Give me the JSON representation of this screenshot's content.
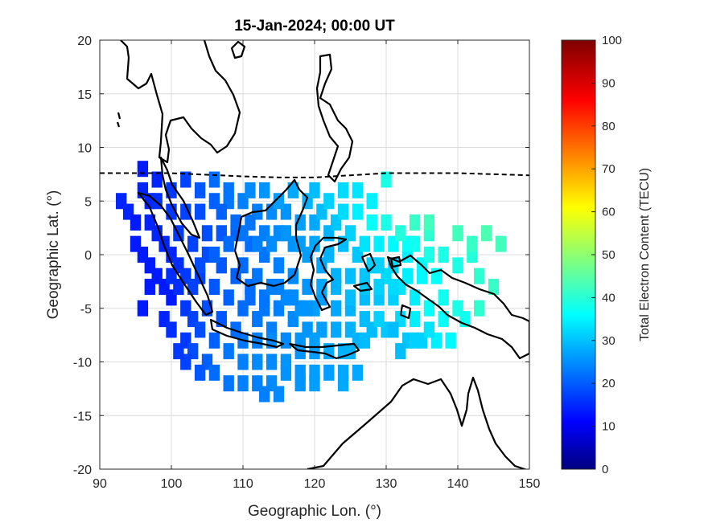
{
  "chart_data": {
    "type": "heatmap",
    "title": "15-Jan-2024; 00:00 UT",
    "xlabel": "Geographic Lon. (°)",
    "ylabel": "Geographic Lat. (°)",
    "xlim": [
      90,
      150
    ],
    "ylim": [
      -20,
      20
    ],
    "xticks": [
      90,
      100,
      110,
      120,
      130,
      140,
      150
    ],
    "yticks": [
      -20,
      -15,
      -10,
      -5,
      0,
      5,
      10,
      15,
      20
    ],
    "grid": true,
    "colorbar": {
      "label": "Total Electron Content (TECU)",
      "range": [
        0,
        100
      ],
      "ticks": [
        0,
        10,
        20,
        30,
        40,
        50,
        60,
        70,
        80,
        90,
        100
      ],
      "colormap": "jet"
    },
    "magnetic_equator": [
      [
        90,
        7.6
      ],
      [
        100,
        7.6
      ],
      [
        110,
        7.3
      ],
      [
        115,
        7.2
      ],
      [
        120,
        7.2
      ],
      [
        125,
        7.4
      ],
      [
        130,
        7.6
      ],
      [
        140,
        7.6
      ],
      [
        150,
        7.4
      ]
    ],
    "tec_cells": [
      [
        93,
        5,
        16
      ],
      [
        94,
        4,
        16
      ],
      [
        95,
        3,
        15
      ],
      [
        95,
        1,
        15
      ],
      [
        96,
        0,
        15
      ],
      [
        97,
        -1,
        15
      ],
      [
        96,
        6,
        16
      ],
      [
        96,
        8,
        15
      ],
      [
        98,
        7,
        16
      ],
      [
        97,
        5,
        16
      ],
      [
        97,
        3,
        16
      ],
      [
        98,
        2,
        16
      ],
      [
        99,
        1,
        16
      ],
      [
        100,
        0,
        16
      ],
      [
        101,
        -1,
        17
      ],
      [
        98,
        -2,
        15
      ],
      [
        99,
        -3,
        15
      ],
      [
        100,
        -4,
        15
      ],
      [
        99,
        -6,
        16
      ],
      [
        100,
        -7,
        17
      ],
      [
        102,
        -8,
        18
      ],
      [
        103,
        -9,
        20
      ],
      [
        105,
        -10,
        22
      ],
      [
        106,
        -11,
        23
      ],
      [
        108,
        -12,
        24
      ],
      [
        110,
        -12,
        25
      ],
      [
        112,
        -12,
        25
      ],
      [
        114,
        -12,
        26
      ],
      [
        116,
        -11,
        27
      ],
      [
        118,
        -11,
        27
      ],
      [
        120,
        -11,
        28
      ],
      [
        122,
        -11,
        28
      ],
      [
        124,
        -11,
        29
      ],
      [
        126,
        -11,
        29
      ],
      [
        101,
        -3,
        17
      ],
      [
        102,
        -5,
        18
      ],
      [
        103,
        -6,
        19
      ],
      [
        104,
        -7,
        20
      ],
      [
        106,
        -8,
        22
      ],
      [
        108,
        -9,
        24
      ],
      [
        110,
        -10,
        25
      ],
      [
        112,
        -10,
        26
      ],
      [
        114,
        -10,
        26
      ],
      [
        116,
        -10,
        27
      ],
      [
        118,
        -9,
        27
      ],
      [
        120,
        -9,
        28
      ],
      [
        122,
        -9,
        29
      ],
      [
        124,
        -9,
        30
      ],
      [
        126,
        -8,
        30
      ],
      [
        128,
        -7,
        31
      ],
      [
        130,
        -7,
        32
      ],
      [
        132,
        -6,
        34
      ],
      [
        134,
        -6,
        36
      ],
      [
        135,
        -8,
        33
      ],
      [
        136,
        -5,
        38
      ],
      [
        134,
        -4,
        36
      ],
      [
        132,
        -3,
        35
      ],
      [
        130,
        -2,
        34
      ],
      [
        128,
        -1,
        33
      ],
      [
        126,
        0,
        32
      ],
      [
        124,
        1,
        31
      ],
      [
        122,
        2,
        30
      ],
      [
        120,
        3,
        29
      ],
      [
        118,
        3,
        28
      ],
      [
        116,
        4,
        27
      ],
      [
        114,
        4,
        26
      ],
      [
        112,
        4,
        25
      ],
      [
        110,
        5,
        25
      ],
      [
        108,
        5,
        24
      ],
      [
        106,
        5,
        22
      ],
      [
        104,
        4,
        20
      ],
      [
        102,
        4,
        19
      ],
      [
        100,
        4,
        18
      ],
      [
        101,
        2,
        18
      ],
      [
        103,
        1,
        19
      ],
      [
        105,
        0,
        20
      ],
      [
        107,
        -1,
        21
      ],
      [
        109,
        -2,
        22
      ],
      [
        111,
        -3,
        23
      ],
      [
        113,
        -4,
        24
      ],
      [
        115,
        -5,
        25
      ],
      [
        117,
        -6,
        26
      ],
      [
        119,
        -7,
        27
      ],
      [
        121,
        -7,
        28
      ],
      [
        123,
        -7,
        29
      ],
      [
        125,
        -7,
        30
      ],
      [
        127,
        -6,
        31
      ],
      [
        104,
        -2,
        19
      ],
      [
        106,
        -3,
        21
      ],
      [
        108,
        -4,
        22
      ],
      [
        110,
        -5,
        23
      ],
      [
        112,
        -6,
        24
      ],
      [
        114,
        -7,
        25
      ],
      [
        116,
        -8,
        26
      ],
      [
        118,
        -8,
        27
      ],
      [
        120,
        -8,
        28
      ],
      [
        105,
        2,
        20
      ],
      [
        107,
        2,
        21
      ],
      [
        109,
        2,
        22
      ],
      [
        111,
        1,
        23
      ],
      [
        113,
        0,
        24
      ],
      [
        115,
        -1,
        25
      ],
      [
        117,
        -2,
        26
      ],
      [
        119,
        -3,
        27
      ],
      [
        121,
        -4,
        28
      ],
      [
        123,
        -5,
        29
      ],
      [
        125,
        -5,
        30
      ],
      [
        127,
        -4,
        31
      ],
      [
        129,
        -4,
        32
      ],
      [
        131,
        -4,
        33
      ],
      [
        110,
        -1,
        23
      ],
      [
        112,
        -2,
        24
      ],
      [
        114,
        -3,
        25
      ],
      [
        116,
        -4,
        26
      ],
      [
        118,
        -5,
        27
      ],
      [
        120,
        -5,
        28
      ],
      [
        107,
        4,
        22
      ],
      [
        109,
        3,
        23
      ],
      [
        111,
        3,
        24
      ],
      [
        113,
        2,
        25
      ],
      [
        115,
        2,
        26
      ],
      [
        117,
        1,
        27
      ],
      [
        119,
        0,
        28
      ],
      [
        121,
        -1,
        29
      ],
      [
        123,
        -2,
        30
      ],
      [
        125,
        -2,
        31
      ],
      [
        127,
        -2,
        32
      ],
      [
        129,
        -1,
        33
      ],
      [
        131,
        -1,
        34
      ],
      [
        133,
        0,
        36
      ],
      [
        135,
        -1,
        37
      ],
      [
        137,
        -2,
        38
      ],
      [
        138,
        0,
        40
      ],
      [
        140,
        -1,
        40
      ],
      [
        142,
        0,
        41
      ],
      [
        143,
        -2,
        42
      ],
      [
        145,
        -3,
        43
      ],
      [
        143,
        -5,
        42
      ],
      [
        140,
        -5,
        40
      ],
      [
        138,
        -4,
        39
      ],
      [
        136,
        2,
        42
      ],
      [
        134,
        3,
        43
      ],
      [
        136,
        3,
        44
      ],
      [
        140,
        2,
        44
      ],
      [
        142,
        1,
        43
      ],
      [
        144,
        2,
        45
      ],
      [
        146,
        1,
        44
      ],
      [
        138,
        -6,
        38
      ],
      [
        137,
        -8,
        36
      ],
      [
        139,
        -8,
        37
      ],
      [
        141,
        -6,
        39
      ],
      [
        133,
        1,
        38
      ],
      [
        131,
        1,
        37
      ],
      [
        129,
        1,
        36
      ],
      [
        127,
        1,
        35
      ],
      [
        125,
        2,
        33
      ],
      [
        123,
        3,
        32
      ],
      [
        121,
        4,
        31
      ],
      [
        119,
        5,
        30
      ],
      [
        117,
        6,
        29
      ],
      [
        115,
        5,
        28
      ],
      [
        113,
        6,
        27
      ],
      [
        111,
        6,
        26
      ],
      [
        108,
        6,
        24
      ],
      [
        106,
        7,
        23
      ],
      [
        104,
        6,
        21
      ],
      [
        102,
        7,
        19
      ],
      [
        100,
        6,
        18
      ],
      [
        98,
        5,
        17
      ],
      [
        124,
        6,
        34
      ],
      [
        126,
        6,
        35
      ],
      [
        128,
        5,
        36
      ],
      [
        130,
        7,
        40
      ],
      [
        128,
        3,
        38
      ],
      [
        126,
        4,
        36
      ],
      [
        124,
        4,
        34
      ],
      [
        122,
        5,
        33
      ],
      [
        120,
        6,
        31
      ],
      [
        130,
        3,
        40
      ],
      [
        132,
        2,
        41
      ],
      [
        134,
        1,
        39
      ],
      [
        136,
        0,
        40
      ],
      [
        129,
        -6,
        33
      ],
      [
        131,
        -7,
        31
      ],
      [
        127,
        -8,
        31
      ],
      [
        125,
        -9,
        30
      ],
      [
        133,
        -8,
        32
      ],
      [
        122,
        0,
        30
      ],
      [
        120,
        1,
        29
      ],
      [
        118,
        1,
        28
      ],
      [
        116,
        2,
        27
      ],
      [
        114,
        1,
        26
      ],
      [
        112,
        1,
        25
      ],
      [
        110,
        2,
        24
      ],
      [
        108,
        1,
        23
      ],
      [
        106,
        0,
        22
      ],
      [
        104,
        -1,
        20
      ],
      [
        102,
        -2,
        18
      ],
      [
        100,
        -2,
        17
      ],
      [
        97,
        -3,
        15
      ],
      [
        96,
        -5,
        15
      ],
      [
        102,
        -10,
        19
      ],
      [
        104,
        -11,
        21
      ],
      [
        113,
        -13,
        25
      ],
      [
        115,
        -13,
        26
      ],
      [
        118,
        -12,
        27
      ],
      [
        120,
        -12,
        28
      ],
      [
        124,
        -12,
        29
      ],
      [
        101,
        -9,
        18
      ],
      [
        110,
        -8,
        24
      ],
      [
        112,
        -8,
        25
      ],
      [
        114,
        -8,
        26
      ],
      [
        103,
        -3,
        19
      ],
      [
        105,
        -5,
        20
      ],
      [
        107,
        -6,
        21
      ],
      [
        109,
        -7,
        23
      ],
      [
        111,
        -4,
        23
      ],
      [
        113,
        -5,
        24
      ],
      [
        115,
        -3,
        25
      ],
      [
        117,
        -4,
        26
      ],
      [
        119,
        -5,
        27
      ],
      [
        121,
        -3,
        29
      ],
      [
        123,
        -3,
        30
      ],
      [
        125,
        -4,
        31
      ],
      [
        127,
        -3,
        32
      ],
      [
        129,
        -3,
        33
      ],
      [
        131,
        -3,
        34
      ],
      [
        133,
        -2,
        36
      ],
      [
        135,
        -2,
        37
      ],
      [
        134,
        -8,
        33
      ],
      [
        136,
        -7,
        35
      ],
      [
        132,
        -9,
        31
      ]
    ]
  }
}
